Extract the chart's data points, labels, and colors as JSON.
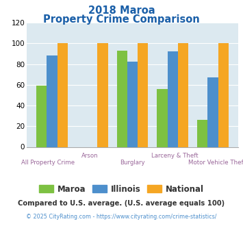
{
  "title_line1": "2018 Maroa",
  "title_line2": "Property Crime Comparison",
  "categories": [
    "All Property Crime",
    "Arson",
    "Burglary",
    "Larceny & Theft",
    "Motor Vehicle Theft"
  ],
  "maroa": [
    59,
    0,
    93,
    56,
    26
  ],
  "illinois": [
    88,
    0,
    82,
    92,
    67
  ],
  "national": [
    100,
    100,
    100,
    100,
    100
  ],
  "bar_colors": {
    "maroa": "#7dc142",
    "illinois": "#4d8fcc",
    "national": "#f5a623"
  },
  "ylim": [
    0,
    120
  ],
  "yticks": [
    0,
    20,
    40,
    60,
    80,
    100,
    120
  ],
  "legend_labels": [
    "Maroa",
    "Illinois",
    "National"
  ],
  "footnote1": "Compared to U.S. average. (U.S. average equals 100)",
  "footnote2": "© 2025 CityRating.com - https://www.cityrating.com/crime-statistics/",
  "title_color": "#1a5fa8",
  "footnote1_color": "#333333",
  "footnote2_color": "#4d8fcc",
  "xlabel_color": "#996699",
  "plot_bg": "#dce9f0",
  "grid_color": "#ffffff",
  "row1_labels": [
    "",
    "Arson",
    "",
    "Larceny & Theft",
    ""
  ],
  "row2_labels": [
    "All Property Crime",
    "",
    "Burglary",
    "",
    "Motor Vehicle Theft"
  ]
}
